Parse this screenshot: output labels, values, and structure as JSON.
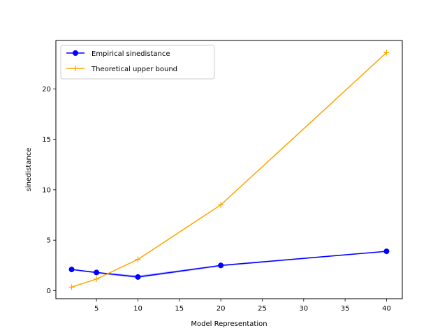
{
  "chart_data": {
    "type": "line",
    "title": "",
    "xlabel": "Model Representation",
    "ylabel": "sinedistance",
    "xlim": [
      0.1,
      41.9
    ],
    "ylim": [
      -0.8,
      24.8
    ],
    "xticks": [
      5,
      10,
      15,
      20,
      25,
      30,
      35,
      40
    ],
    "yticks": [
      0,
      5,
      10,
      15,
      20
    ],
    "grid": false,
    "legend_position": "top-left",
    "series": [
      {
        "name": "Empirical sinedistance",
        "color": "#0000ff",
        "marker": "circle",
        "x": [
          2,
          5,
          10,
          20,
          40
        ],
        "y": [
          2.1,
          1.8,
          1.35,
          2.5,
          3.9
        ],
        "band_lower": [
          2.05,
          1.7,
          1.25,
          2.4,
          3.85
        ],
        "band_upper": [
          2.1,
          1.85,
          1.5,
          2.55,
          3.95
        ]
      },
      {
        "name": "Theoretical upper bound",
        "color": "#ffa500",
        "marker": "plus",
        "x": [
          2,
          5,
          10,
          20,
          40
        ],
        "y": [
          0.35,
          1.15,
          3.1,
          8.5,
          23.6
        ]
      }
    ]
  }
}
